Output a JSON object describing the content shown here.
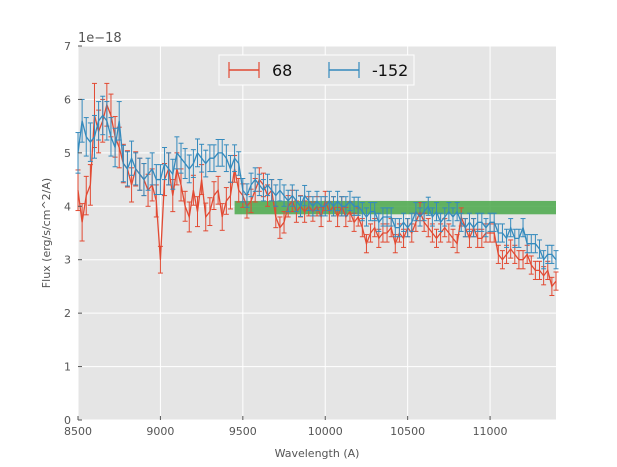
{
  "chart_data": {
    "type": "line",
    "title": "",
    "xlabel": "Wavelength (A)",
    "ylabel": "Flux (erg/s/cm^2/A)",
    "offset_label": "1e−18",
    "xlim": [
      8500,
      11400
    ],
    "ylim": [
      0,
      7
    ],
    "xticks": [
      8500,
      9000,
      9500,
      10000,
      10500,
      11000
    ],
    "yticks": [
      0,
      1,
      2,
      3,
      4,
      5,
      6,
      7
    ],
    "grid": true,
    "legend_position": "top-center",
    "band": {
      "x": [
        9450,
        11400
      ],
      "y": [
        3.85,
        4.1
      ],
      "color": "#4aa84a"
    },
    "x": [
      8500,
      8525,
      8550,
      8575,
      8600,
      8625,
      8650,
      8675,
      8700,
      8725,
      8750,
      8775,
      8800,
      8825,
      8850,
      8875,
      8900,
      8925,
      8950,
      8975,
      9000,
      9025,
      9050,
      9075,
      9100,
      9125,
      9150,
      9175,
      9200,
      9225,
      9250,
      9275,
      9300,
      9325,
      9350,
      9375,
      9400,
      9425,
      9450,
      9475,
      9500,
      9525,
      9550,
      9575,
      9600,
      9625,
      9650,
      9675,
      9700,
      9725,
      9750,
      9775,
      9800,
      9825,
      9850,
      9875,
      9900,
      9925,
      9950,
      9975,
      10000,
      10025,
      10050,
      10075,
      10100,
      10125,
      10150,
      10175,
      10200,
      10225,
      10250,
      10275,
      10300,
      10325,
      10350,
      10375,
      10400,
      10425,
      10450,
      10475,
      10500,
      10525,
      10550,
      10575,
      10600,
      10625,
      10650,
      10675,
      10700,
      10725,
      10750,
      10775,
      10800,
      10825,
      10850,
      10875,
      10900,
      10925,
      10950,
      10975,
      11000,
      11025,
      11050,
      11075,
      11100,
      11125,
      11150,
      11175,
      11200,
      11225,
      11250,
      11275,
      11300,
      11325,
      11350,
      11375,
      11400
    ],
    "series": [
      {
        "name": "68",
        "color": "#e24a33",
        "values": [
          4.3,
          3.7,
          4.2,
          4.4,
          5.7,
          5.4,
          5.6,
          5.9,
          5.7,
          5.3,
          5.1,
          4.8,
          4.7,
          4.4,
          4.7,
          4.6,
          4.5,
          4.3,
          4.4,
          4.1,
          3.0,
          4.5,
          4.7,
          4.2,
          4.7,
          4.4,
          4.0,
          3.8,
          4.3,
          3.9,
          4.5,
          3.8,
          3.9,
          4.2,
          4.3,
          3.8,
          4.1,
          4.2,
          4.7,
          4.3,
          4.2,
          4.0,
          4.1,
          4.3,
          4.5,
          4.4,
          4.2,
          4.3,
          3.8,
          3.6,
          3.7,
          4.0,
          4.1,
          3.9,
          4.0,
          3.9,
          4.0,
          3.9,
          4.0,
          3.8,
          4.1,
          3.9,
          4.0,
          3.8,
          4.0,
          3.8,
          3.9,
          3.7,
          3.8,
          3.6,
          3.3,
          3.5,
          3.6,
          3.4,
          3.5,
          3.5,
          3.6,
          3.3,
          3.5,
          3.4,
          3.6,
          3.5,
          3.7,
          3.9,
          3.7,
          3.6,
          3.5,
          3.4,
          3.5,
          3.6,
          3.5,
          3.4,
          3.3,
          3.8,
          3.6,
          3.4,
          3.6,
          3.4,
          3.4,
          3.5,
          3.5,
          3.5,
          3.1,
          3.0,
          3.1,
          3.2,
          3.1,
          3.0,
          3.0,
          3.1,
          2.9,
          2.8,
          2.8,
          2.7,
          2.8,
          2.5,
          2.6
        ],
        "errors": [
          0.38,
          0.35,
          0.36,
          0.38,
          0.6,
          0.4,
          0.4,
          0.4,
          0.4,
          0.38,
          0.38,
          0.36,
          0.34,
          0.32,
          0.32,
          0.3,
          0.3,
          0.3,
          0.3,
          0.3,
          0.25,
          0.3,
          0.3,
          0.3,
          0.3,
          0.3,
          0.28,
          0.28,
          0.28,
          0.28,
          0.28,
          0.26,
          0.26,
          0.26,
          0.26,
          0.25,
          0.25,
          0.25,
          0.25,
          0.22,
          0.22,
          0.22,
          0.22,
          0.22,
          0.22,
          0.22,
          0.2,
          0.2,
          0.2,
          0.2,
          0.2,
          0.2,
          0.2,
          0.2,
          0.2,
          0.2,
          0.18,
          0.18,
          0.18,
          0.18,
          0.18,
          0.18,
          0.18,
          0.18,
          0.18,
          0.18,
          0.18,
          0.17,
          0.17,
          0.17,
          0.17,
          0.17,
          0.17,
          0.17,
          0.17,
          0.17,
          0.17,
          0.17,
          0.17,
          0.17,
          0.17,
          0.17,
          0.17,
          0.17,
          0.17,
          0.17,
          0.17,
          0.17,
          0.17,
          0.17,
          0.17,
          0.17,
          0.17,
          0.17,
          0.17,
          0.17,
          0.17,
          0.17,
          0.17,
          0.17,
          0.17,
          0.17,
          0.17,
          0.17,
          0.17,
          0.17,
          0.17,
          0.17,
          0.17,
          0.17,
          0.17,
          0.17,
          0.17,
          0.17,
          0.17,
          0.17,
          0.17
        ]
      },
      {
        "name": "-152",
        "color": "#348abd",
        "values": [
          5.0,
          5.6,
          5.3,
          5.2,
          5.3,
          5.6,
          5.7,
          5.6,
          5.3,
          5.1,
          5.6,
          4.8,
          4.7,
          4.9,
          4.7,
          4.6,
          4.5,
          4.6,
          4.7,
          4.5,
          4.5,
          4.8,
          4.7,
          4.6,
          5.0,
          4.9,
          4.8,
          4.7,
          4.8,
          5.0,
          4.9,
          4.8,
          4.9,
          4.9,
          5.0,
          5.0,
          4.9,
          4.7,
          4.9,
          4.8,
          4.3,
          4.2,
          4.4,
          4.5,
          4.4,
          4.3,
          4.4,
          4.3,
          4.2,
          4.3,
          4.2,
          4.1,
          4.2,
          4.1,
          4.0,
          4.2,
          4.1,
          4.0,
          4.1,
          4.0,
          4.0,
          4.1,
          4.0,
          4.1,
          4.0,
          4.0,
          4.1,
          4.0,
          4.0,
          3.9,
          3.8,
          3.9,
          3.9,
          3.7,
          3.8,
          3.8,
          3.8,
          3.6,
          3.6,
          3.7,
          3.6,
          3.7,
          3.9,
          3.8,
          3.9,
          4.0,
          3.8,
          3.9,
          3.7,
          3.8,
          3.9,
          3.8,
          3.9,
          3.7,
          3.6,
          3.7,
          3.6,
          3.7,
          3.7,
          3.6,
          3.7,
          3.7,
          3.5,
          3.5,
          3.4,
          3.6,
          3.4,
          3.4,
          3.6,
          3.3,
          3.3,
          3.3,
          3.2,
          3.0,
          3.1,
          3.1,
          3.0
        ],
        "errors": [
          0.38,
          0.4,
          0.36,
          0.36,
          0.4,
          0.36,
          0.36,
          0.36,
          0.36,
          0.36,
          0.36,
          0.34,
          0.32,
          0.32,
          0.3,
          0.3,
          0.3,
          0.3,
          0.3,
          0.28,
          0.28,
          0.3,
          0.3,
          0.28,
          0.3,
          0.28,
          0.28,
          0.26,
          0.26,
          0.26,
          0.26,
          0.25,
          0.25,
          0.25,
          0.25,
          0.25,
          0.25,
          0.25,
          0.25,
          0.22,
          0.22,
          0.22,
          0.22,
          0.22,
          0.2,
          0.2,
          0.2,
          0.2,
          0.2,
          0.2,
          0.2,
          0.2,
          0.2,
          0.2,
          0.19,
          0.19,
          0.18,
          0.18,
          0.18,
          0.18,
          0.18,
          0.18,
          0.18,
          0.18,
          0.18,
          0.18,
          0.18,
          0.17,
          0.17,
          0.17,
          0.17,
          0.17,
          0.17,
          0.17,
          0.17,
          0.17,
          0.17,
          0.17,
          0.17,
          0.17,
          0.17,
          0.17,
          0.17,
          0.17,
          0.17,
          0.17,
          0.17,
          0.17,
          0.17,
          0.17,
          0.17,
          0.17,
          0.17,
          0.17,
          0.17,
          0.17,
          0.17,
          0.17,
          0.17,
          0.17,
          0.17,
          0.17,
          0.17,
          0.17,
          0.17,
          0.17,
          0.17,
          0.17,
          0.17,
          0.17,
          0.17,
          0.17,
          0.17,
          0.17,
          0.17,
          0.17,
          0.17
        ]
      }
    ]
  }
}
